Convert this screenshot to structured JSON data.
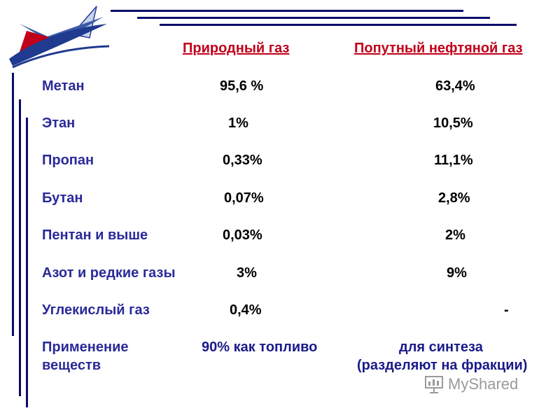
{
  "headers": {
    "natural_gas": "Природный газ",
    "associated_gas": "Попутный нефтяной газ"
  },
  "rows": [
    {
      "label": "Метан",
      "natural": "95,6 %",
      "associated": "63,4%"
    },
    {
      "label": "Этан",
      "natural": "1%",
      "associated": "10,5%"
    },
    {
      "label": "Пропан",
      "natural": "0,33%",
      "associated": "11,1%"
    },
    {
      "label": "Бутан",
      "natural": "0,07%",
      "associated": "2,8%"
    },
    {
      "label": "Пентан и выше",
      "natural": "0,03%",
      "associated": "2%"
    },
    {
      "label": "Азот и редкие газы",
      "natural": "3%",
      "associated": "9%"
    },
    {
      "label": "Углекислый газ",
      "natural": "0,4%",
      "associated": "-"
    }
  ],
  "application": {
    "label_line1": "Применение",
    "label_line2": "веществ",
    "natural": "90% как топливо",
    "associated_line1": "для синтеза",
    "associated_line2": "(разделяют на фракции)"
  },
  "watermark": {
    "text": "MyShared",
    "icon": "presentation-board-icon"
  },
  "colors": {
    "header": "#c0001a",
    "label": "#2a2a9a",
    "accent_lines": "#0b0b6b"
  }
}
